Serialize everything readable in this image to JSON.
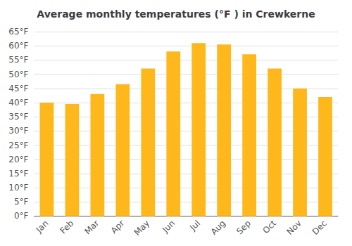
{
  "chart_data": {
    "type": "bar",
    "title": "Average monthly temperatures (°F ) in Crewkerne",
    "categories": [
      "Jan",
      "Feb",
      "Mar",
      "Apr",
      "May",
      "Jun",
      "Jul",
      "Aug",
      "Sep",
      "Oct",
      "Nov",
      "Dec"
    ],
    "values": [
      40,
      39.5,
      43,
      46.5,
      52,
      58,
      61,
      60.5,
      57,
      52,
      45,
      42
    ],
    "color": "#FFB81C",
    "ylim": [
      0,
      65
    ],
    "yticks": [
      {
        "value": 0,
        "label": "0°F"
      },
      {
        "value": 5,
        "label": "5°F"
      },
      {
        "value": 10,
        "label": "10°F"
      },
      {
        "value": 15,
        "label": "15°F"
      },
      {
        "value": 20,
        "label": "20°F"
      },
      {
        "value": 25,
        "label": "25°F"
      },
      {
        "value": 30,
        "label": "30°F"
      },
      {
        "value": 35,
        "label": "35°F"
      },
      {
        "value": 40,
        "label": "40°F"
      },
      {
        "value": 45,
        "label": "45°F"
      },
      {
        "value": 50,
        "label": "50°F"
      },
      {
        "value": 55,
        "label": "55°F"
      },
      {
        "value": 60,
        "label": "60°F"
      },
      {
        "value": 65,
        "label": "65°F"
      }
    ],
    "grid": true
  }
}
